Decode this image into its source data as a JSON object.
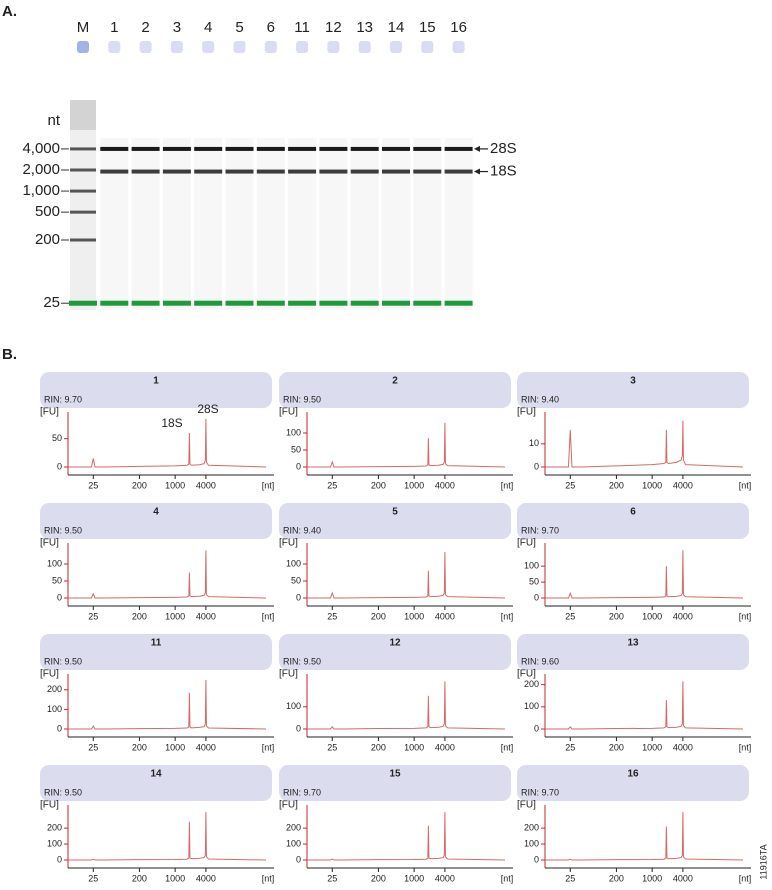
{
  "panel_labels": [
    "A.",
    "B."
  ],
  "figure_id": "11916TA",
  "chart_data": [
    {
      "type": "gel",
      "categories": [
        "M",
        "1",
        "2",
        "3",
        "4",
        "5",
        "6",
        "11",
        "12",
        "13",
        "14",
        "15",
        "16"
      ],
      "unit_label": "nt",
      "ylim": [
        20,
        20000
      ],
      "log_scale": true,
      "yticks": [
        {
          "value": 4000,
          "label": "4,000"
        },
        {
          "value": 2000,
          "label": "2,000"
        },
        {
          "value": 1000,
          "label": "1,000"
        },
        500,
        200,
        25
      ],
      "series": [
        {
          "name": "28S",
          "color": "#1a1a1a",
          "values": [
            null,
            4000,
            4000,
            4000,
            4000,
            4000,
            4000,
            4000,
            4000,
            4000,
            4000,
            4000,
            4000
          ]
        },
        {
          "name": "18S",
          "color": "#3c3c3c",
          "values": [
            null,
            1900,
            1900,
            1900,
            1900,
            1900,
            1900,
            1900,
            1900,
            1900,
            1900,
            1900,
            1900
          ]
        }
      ],
      "lower_marker": {
        "value": 25,
        "color": "#1e9a3c"
      }
    },
    {
      "type": "line",
      "title": "1",
      "subtitle": "RIN: 9.70",
      "y_label": "[FU]",
      "x_label": "[nt]",
      "annotations": [
        "18S",
        "28S"
      ],
      "xlim": [
        8,
        60000
      ],
      "log_scale": true,
      "xticks": [
        25,
        200,
        1000,
        4000
      ],
      "ylim": [
        0,
        90
      ],
      "yticks": [
        0,
        50
      ],
      "color": "#d46a6a",
      "x": [
        8,
        20,
        23,
        25,
        27,
        40,
        200,
        1000,
        1700,
        1850,
        1900,
        1950,
        2100,
        3000,
        3700,
        3900,
        4000,
        4100,
        4500,
        60000
      ],
      "values": [
        0,
        0,
        0,
        15,
        0,
        0,
        1,
        2,
        3,
        5,
        60,
        5,
        3,
        4,
        6,
        12,
        85,
        8,
        3,
        0
      ]
    },
    {
      "type": "line",
      "title": "2",
      "subtitle": "RIN: 9.50",
      "y_label": "[FU]",
      "x_label": "[nt]",
      "xlim": [
        8,
        60000
      ],
      "log_scale": true,
      "xticks": [
        25,
        200,
        1000,
        4000
      ],
      "ylim": [
        0,
        150
      ],
      "yticks": [
        0,
        50,
        100
      ],
      "color": "#d46a6a",
      "x": [
        8,
        20,
        23,
        25,
        27,
        40,
        200,
        1000,
        1700,
        1850,
        1900,
        1950,
        2100,
        3000,
        3700,
        3900,
        4000,
        4100,
        4500,
        60000
      ],
      "values": [
        0,
        0,
        0,
        15,
        0,
        0,
        1,
        2,
        3,
        6,
        85,
        6,
        4,
        5,
        8,
        15,
        130,
        10,
        4,
        0
      ]
    },
    {
      "type": "line",
      "title": "3",
      "subtitle": "RIN: 9.40",
      "y_label": "[FU]",
      "x_label": "[nt]",
      "xlim": [
        8,
        60000
      ],
      "log_scale": true,
      "xticks": [
        25,
        200,
        1000,
        4000
      ],
      "ylim": [
        0,
        22
      ],
      "yticks": [
        0,
        10
      ],
      "color": "#d46a6a",
      "x": [
        8,
        20,
        23,
        25,
        27,
        40,
        200,
        1000,
        1700,
        1850,
        1900,
        1950,
        2100,
        3000,
        3700,
        3900,
        4000,
        4100,
        4500,
        60000
      ],
      "values": [
        0,
        0,
        0,
        16,
        0,
        0,
        0.5,
        1,
        1.5,
        2,
        16,
        2,
        1.5,
        2,
        3,
        5,
        20,
        3,
        1,
        0
      ]
    },
    {
      "type": "line",
      "title": "4",
      "subtitle": "RIN: 9.50",
      "y_label": "[FU]",
      "x_label": "[nt]",
      "xlim": [
        8,
        60000
      ],
      "log_scale": true,
      "xticks": [
        25,
        200,
        1000,
        4000
      ],
      "ylim": [
        0,
        150
      ],
      "yticks": [
        0,
        50,
        100
      ],
      "color": "#d46a6a",
      "x": [
        8,
        20,
        23,
        25,
        27,
        40,
        200,
        1000,
        1700,
        1850,
        1900,
        1950,
        2100,
        3000,
        3700,
        3900,
        4000,
        4100,
        4500,
        60000
      ],
      "values": [
        0,
        0,
        0,
        12,
        0,
        0,
        1,
        2,
        3,
        6,
        75,
        6,
        4,
        5,
        8,
        15,
        140,
        10,
        4,
        0
      ]
    },
    {
      "type": "line",
      "title": "5",
      "subtitle": "RIN: 9.40",
      "y_label": "[FU]",
      "x_label": "[nt]",
      "xlim": [
        8,
        60000
      ],
      "log_scale": true,
      "xticks": [
        25,
        200,
        1000,
        4000
      ],
      "ylim": [
        0,
        150
      ],
      "yticks": [
        0,
        50,
        100
      ],
      "color": "#d46a6a",
      "x": [
        8,
        20,
        23,
        25,
        27,
        40,
        200,
        1000,
        1700,
        1850,
        1900,
        1950,
        2100,
        3000,
        3700,
        3900,
        4000,
        4100,
        4500,
        60000
      ],
      "values": [
        0,
        0,
        0,
        15,
        0,
        0,
        1,
        2,
        3,
        6,
        80,
        6,
        4,
        5,
        8,
        15,
        135,
        10,
        4,
        0
      ]
    },
    {
      "type": "line",
      "title": "6",
      "subtitle": "RIN: 9.70",
      "y_label": "[FU]",
      "x_label": "[nt]",
      "xlim": [
        8,
        60000
      ],
      "log_scale": true,
      "xticks": [
        25,
        200,
        1000,
        4000
      ],
      "ylim": [
        0,
        160
      ],
      "yticks": [
        0,
        50,
        100
      ],
      "color": "#d46a6a",
      "x": [
        8,
        20,
        23,
        25,
        27,
        40,
        200,
        1000,
        1700,
        1850,
        1900,
        1950,
        2100,
        3000,
        3700,
        3900,
        4000,
        4100,
        4500,
        60000
      ],
      "values": [
        0,
        0,
        0,
        15,
        0,
        0,
        1,
        2,
        3,
        6,
        100,
        6,
        4,
        5,
        8,
        15,
        150,
        10,
        4,
        0
      ]
    },
    {
      "type": "line",
      "title": "11",
      "subtitle": "RIN: 9.50",
      "y_label": "[FU]",
      "x_label": "[nt]",
      "xlim": [
        8,
        60000
      ],
      "log_scale": true,
      "xticks": [
        25,
        200,
        1000,
        4000
      ],
      "ylim": [
        0,
        260
      ],
      "yticks": [
        0,
        100,
        200
      ],
      "color": "#d46a6a",
      "x": [
        8,
        20,
        23,
        25,
        27,
        40,
        200,
        1000,
        1700,
        1850,
        1900,
        1950,
        2100,
        3000,
        3700,
        3900,
        4000,
        4100,
        4500,
        60000
      ],
      "values": [
        0,
        0,
        0,
        15,
        0,
        0,
        2,
        3,
        5,
        10,
        185,
        10,
        6,
        8,
        12,
        25,
        250,
        15,
        5,
        0
      ]
    },
    {
      "type": "line",
      "title": "12",
      "subtitle": "RIN: 9.50",
      "y_label": "[FU]",
      "x_label": "[nt]",
      "xlim": [
        8,
        60000
      ],
      "log_scale": true,
      "xticks": [
        25,
        200,
        1000,
        4000
      ],
      "ylim": [
        0,
        230
      ],
      "yticks": [
        0,
        100
      ],
      "color": "#d46a6a",
      "x": [
        8,
        20,
        23,
        25,
        27,
        40,
        200,
        1000,
        1700,
        1850,
        1900,
        1950,
        2100,
        3000,
        3700,
        3900,
        4000,
        4100,
        4500,
        60000
      ],
      "values": [
        0,
        0,
        0,
        10,
        0,
        0,
        2,
        3,
        5,
        10,
        150,
        10,
        6,
        8,
        12,
        25,
        215,
        15,
        5,
        0
      ]
    },
    {
      "type": "line",
      "title": "13",
      "subtitle": "RIN: 9.60",
      "y_label": "[FU]",
      "x_label": "[nt]",
      "xlim": [
        8,
        60000
      ],
      "log_scale": true,
      "xticks": [
        25,
        200,
        1000,
        4000
      ],
      "ylim": [
        0,
        230
      ],
      "yticks": [
        0,
        100,
        200
      ],
      "color": "#d46a6a",
      "x": [
        8,
        20,
        23,
        25,
        27,
        40,
        200,
        1000,
        1700,
        1850,
        1900,
        1950,
        2100,
        3000,
        3700,
        3900,
        4000,
        4100,
        4500,
        60000
      ],
      "values": [
        0,
        0,
        0,
        10,
        0,
        0,
        2,
        3,
        5,
        10,
        130,
        10,
        6,
        8,
        12,
        25,
        215,
        15,
        5,
        0
      ]
    },
    {
      "type": "line",
      "title": "14",
      "subtitle": "RIN: 9.50",
      "y_label": "[FU]",
      "x_label": "[nt]",
      "xlim": [
        8,
        60000
      ],
      "log_scale": true,
      "xticks": [
        25,
        200,
        1000,
        4000
      ],
      "ylim": [
        0,
        320
      ],
      "yticks": [
        0,
        100,
        200
      ],
      "color": "#d46a6a",
      "x": [
        8,
        20,
        23,
        25,
        27,
        40,
        200,
        1000,
        1700,
        1850,
        1900,
        1950,
        2100,
        3000,
        3700,
        3900,
        4000,
        4100,
        4500,
        60000
      ],
      "values": [
        0,
        0,
        0,
        5,
        0,
        0,
        2,
        3,
        5,
        12,
        240,
        12,
        8,
        10,
        15,
        30,
        300,
        20,
        6,
        0
      ]
    },
    {
      "type": "line",
      "title": "15",
      "subtitle": "RIN: 9.70",
      "y_label": "[FU]",
      "x_label": "[nt]",
      "xlim": [
        8,
        60000
      ],
      "log_scale": true,
      "xticks": [
        25,
        200,
        1000,
        4000
      ],
      "ylim": [
        0,
        320
      ],
      "yticks": [
        0,
        100,
        200
      ],
      "color": "#d46a6a",
      "x": [
        8,
        20,
        23,
        25,
        27,
        40,
        200,
        1000,
        1700,
        1850,
        1900,
        1950,
        2100,
        3000,
        3700,
        3900,
        4000,
        4100,
        4500,
        60000
      ],
      "values": [
        0,
        0,
        0,
        5,
        0,
        0,
        2,
        3,
        5,
        12,
        215,
        12,
        8,
        10,
        15,
        30,
        300,
        20,
        6,
        0
      ]
    },
    {
      "type": "line",
      "title": "16",
      "subtitle": "RIN: 9.70",
      "y_label": "[FU]",
      "x_label": "[nt]",
      "xlim": [
        8,
        60000
      ],
      "log_scale": true,
      "xticks": [
        25,
        200,
        1000,
        4000
      ],
      "ylim": [
        0,
        320
      ],
      "yticks": [
        0,
        100,
        200
      ],
      "color": "#d46a6a",
      "x": [
        8,
        20,
        23,
        25,
        27,
        40,
        200,
        1000,
        1700,
        1850,
        1900,
        1950,
        2100,
        3000,
        3700,
        3900,
        4000,
        4100,
        4500,
        60000
      ],
      "values": [
        0,
        0,
        0,
        5,
        0,
        0,
        2,
        3,
        5,
        12,
        210,
        12,
        8,
        10,
        15,
        30,
        300,
        20,
        6,
        0
      ]
    }
  ]
}
